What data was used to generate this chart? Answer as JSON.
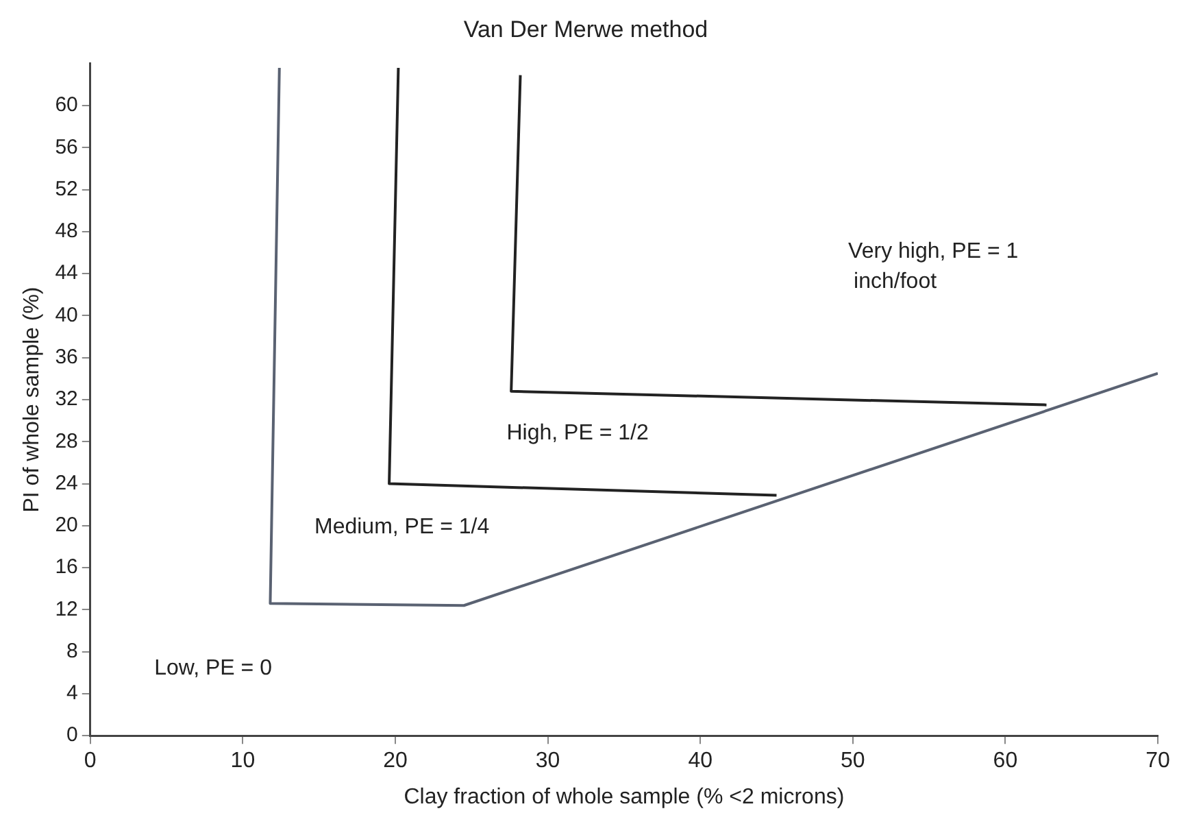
{
  "chart_data": {
    "type": "line",
    "title": "Van Der Merwe method",
    "xlabel": "Clay fraction of whole sample (% <2 microns)",
    "ylabel": "PI of whole sample (%)",
    "series": [
      {
        "color": "#5a6272",
        "x": [
          12.4,
          11.8,
          24.5,
          70
        ],
        "values": [
          63.6,
          12.6,
          12.4,
          34.5
        ]
      },
      {
        "color": "#222222",
        "x": [
          20.2,
          19.6,
          45.0
        ],
        "values": [
          63.6,
          24.0,
          22.9
        ]
      },
      {
        "color": "#222222",
        "x": [
          28.2,
          27.6,
          62.7
        ],
        "values": [
          62.9,
          32.8,
          31.5
        ]
      }
    ],
    "annotations": [
      "Very high, PE = 1\ninch/foot",
      "High, PE = 1/2",
      "Medium, PE = 1/4",
      "Low, PE = 0"
    ],
    "xlim": [
      0,
      70
    ],
    "xticks": [
      0,
      10,
      20,
      30,
      40,
      50,
      60,
      70
    ],
    "ylim": [
      0,
      64
    ],
    "yticks": [
      0,
      4,
      8,
      12,
      16,
      20,
      24,
      28,
      32,
      36,
      40,
      44,
      48,
      52,
      56,
      60
    ],
    "marker": "none",
    "line_style": "solid",
    "grid": false,
    "legend": false
  }
}
